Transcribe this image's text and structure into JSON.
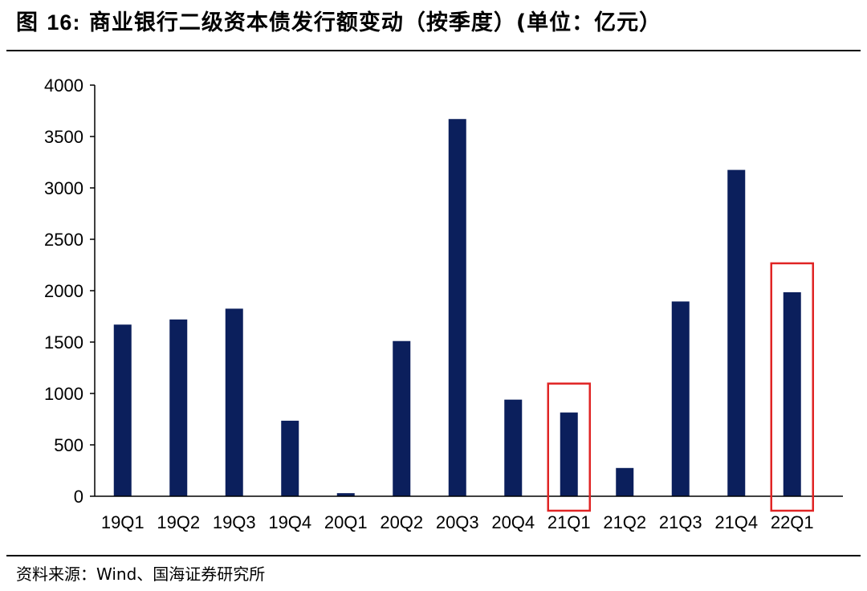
{
  "figure": {
    "label": "图",
    "number": "16:",
    "title_text": "商业银行二级资本债发行额变动（按季度）(单位：亿元）"
  },
  "source": {
    "text": "资料来源：Wind、国海证券研究所"
  },
  "colors": {
    "bar": "#0b1f5c",
    "highlight_box": "#e02424",
    "axis": "#000000"
  },
  "chart_data": {
    "type": "bar",
    "categories": [
      "19Q1",
      "19Q2",
      "19Q3",
      "19Q4",
      "20Q1",
      "20Q2",
      "20Q3",
      "20Q4",
      "21Q1",
      "21Q2",
      "21Q3",
      "21Q4",
      "22Q1"
    ],
    "values": [
      1670,
      1720,
      1825,
      735,
      30,
      1510,
      3670,
      940,
      815,
      275,
      1895,
      3175,
      1985
    ],
    "ylim": [
      0,
      4000
    ],
    "yticks": [
      0,
      500,
      1000,
      1500,
      2000,
      2500,
      3000,
      3500,
      4000
    ],
    "xlabel": "",
    "ylabel": "",
    "grid": false,
    "legend": "none",
    "highlighted_categories": [
      "21Q1",
      "22Q1"
    ]
  }
}
